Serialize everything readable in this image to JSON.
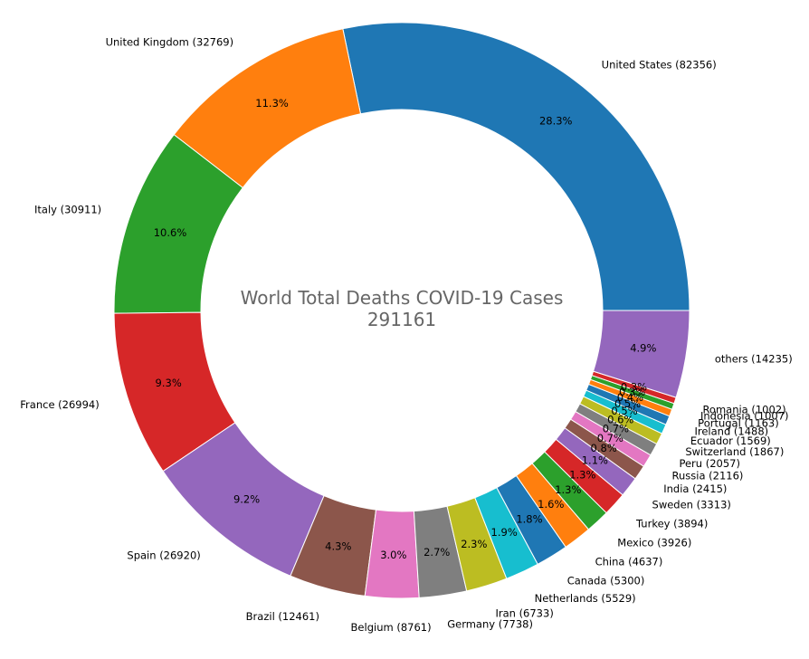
{
  "chart_data": {
    "type": "pie",
    "title": "World Total Deaths COVID-19 Cases",
    "total": "291161",
    "donut": true,
    "start_angle_deg": 0,
    "direction": "counterclockwise",
    "slices": [
      {
        "label": "United States (82356)",
        "value": 82356,
        "pct": "28.3%",
        "color": "#1f77b4"
      },
      {
        "label": "United Kingdom (32769)",
        "value": 32769,
        "pct": "11.3%",
        "color": "#ff7f0e"
      },
      {
        "label": "Italy (30911)",
        "value": 30911,
        "pct": "10.6%",
        "color": "#2ca02c"
      },
      {
        "label": "France (26994)",
        "value": 26994,
        "pct": "9.3%",
        "color": "#d62728"
      },
      {
        "label": "Spain (26920)",
        "value": 26920,
        "pct": "9.2%",
        "color": "#9467bd"
      },
      {
        "label": "Brazil (12461)",
        "value": 12461,
        "pct": "4.3%",
        "color": "#8c564b"
      },
      {
        "label": "Belgium (8761)",
        "value": 8761,
        "pct": "3.0%",
        "color": "#e377c2"
      },
      {
        "label": "Germany (7738)",
        "value": 7738,
        "pct": "2.7%",
        "color": "#7f7f7f"
      },
      {
        "label": "Iran (6733)",
        "value": 6733,
        "pct": "2.3%",
        "color": "#bcbd22"
      },
      {
        "label": "Netherlands (5529)",
        "value": 5529,
        "pct": "1.9%",
        "color": "#17becf"
      },
      {
        "label": "Canada (5300)",
        "value": 5300,
        "pct": "1.8%",
        "color": "#1f77b4"
      },
      {
        "label": "China (4637)",
        "value": 4637,
        "pct": "1.6%",
        "color": "#ff7f0e"
      },
      {
        "label": "Mexico (3926)",
        "value": 3926,
        "pct": "1.3%",
        "color": "#2ca02c"
      },
      {
        "label": "Turkey (3894)",
        "value": 3894,
        "pct": "1.3%",
        "color": "#d62728"
      },
      {
        "label": "Sweden (3313)",
        "value": 3313,
        "pct": "1.1%",
        "color": "#9467bd"
      },
      {
        "label": "India (2415)",
        "value": 2415,
        "pct": "0.8%",
        "color": "#8c564b"
      },
      {
        "label": "Russia (2116)",
        "value": 2116,
        "pct": "0.7%",
        "color": "#e377c2"
      },
      {
        "label": "Peru (2057)",
        "value": 2057,
        "pct": "0.7%",
        "color": "#7f7f7f"
      },
      {
        "label": "Switzerland (1867)",
        "value": 1867,
        "pct": "0.6%",
        "color": "#bcbd22"
      },
      {
        "label": "Ecuador (1569)",
        "value": 1569,
        "pct": "0.5%",
        "color": "#17becf"
      },
      {
        "label": "Ireland (1488)",
        "value": 1488,
        "pct": "0.5%",
        "color": "#1f77b4"
      },
      {
        "label": "Portugal (1163)",
        "value": 1163,
        "pct": "0.4%",
        "color": "#ff7f0e"
      },
      {
        "label": "Indonesia (1007)",
        "value": 1007,
        "pct": "0.3%",
        "color": "#2ca02c"
      },
      {
        "label": "Romania (1002)",
        "value": 1002,
        "pct": "0.3%",
        "color": "#d62728"
      },
      {
        "label": "others (14235)",
        "value": 14235,
        "pct": "4.9%",
        "color": "#9467bd"
      }
    ]
  }
}
